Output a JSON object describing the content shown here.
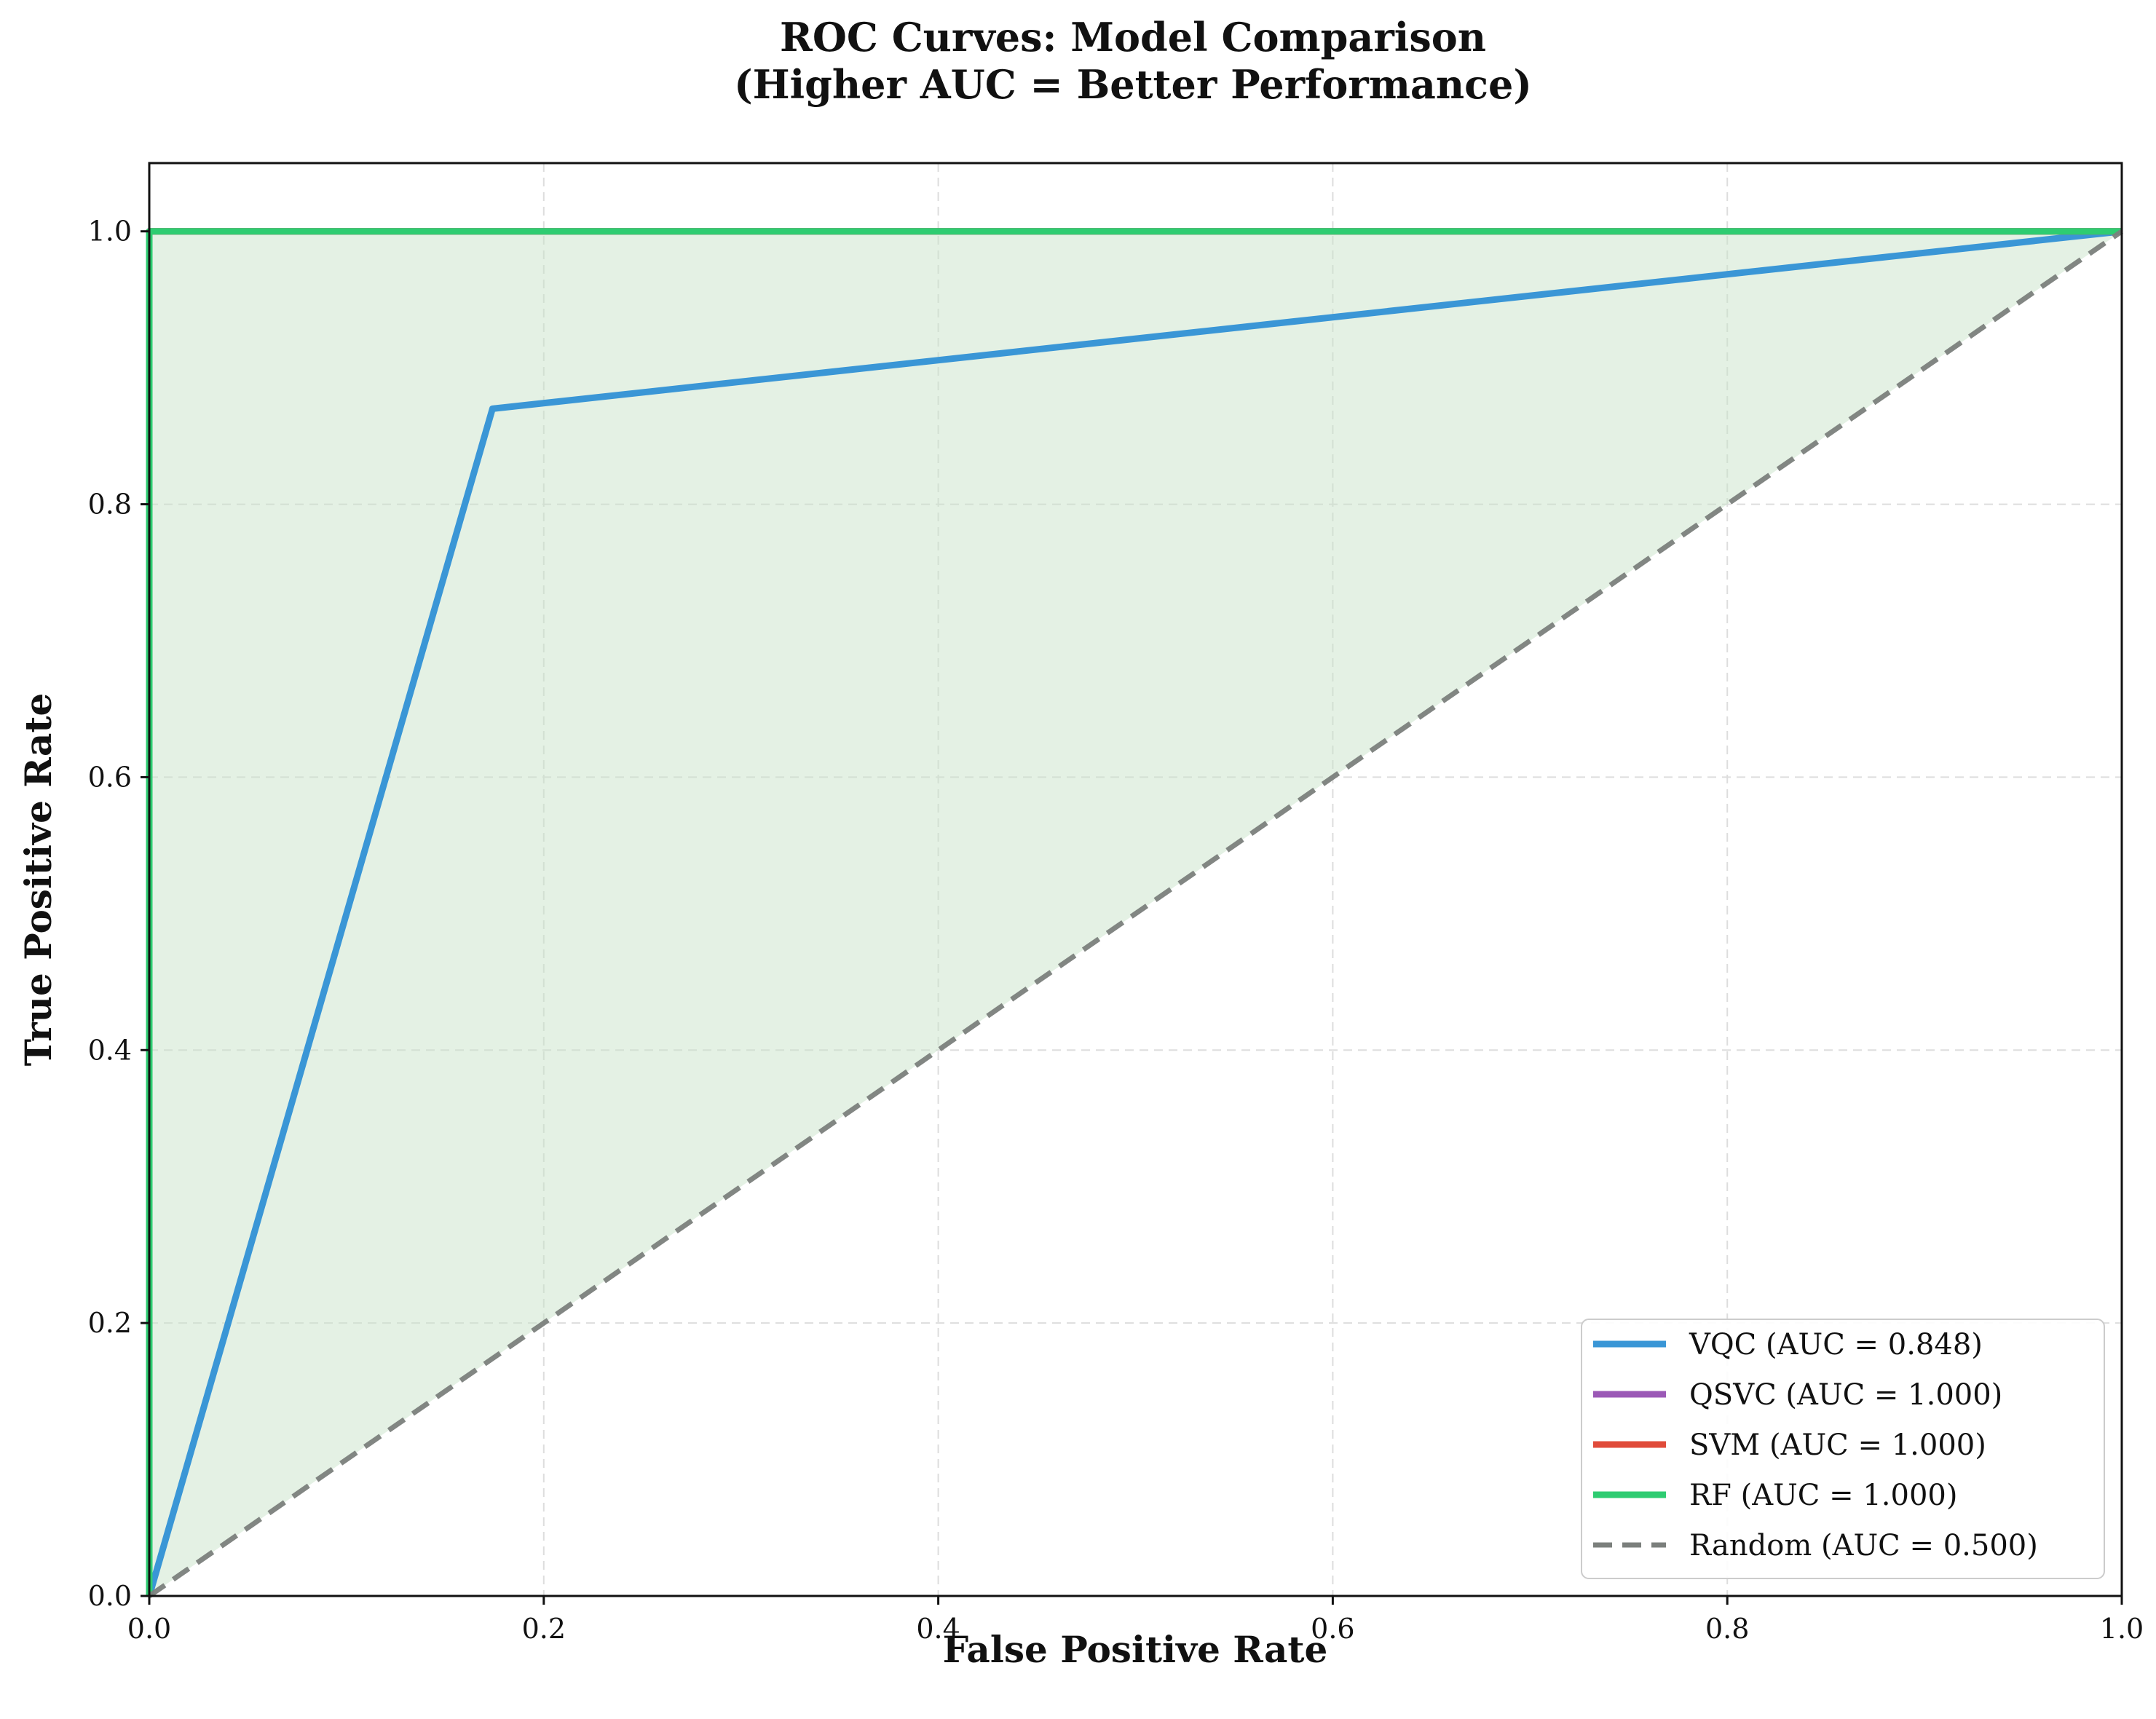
{
  "chart_data": {
    "type": "line",
    "title_lines": [
      "ROC Curves: Model Comparison",
      "(Higher AUC = Better Performance)"
    ],
    "xlabel": "False Positive Rate",
    "ylabel": "True Positive Rate",
    "xlim": [
      0.0,
      1.0
    ],
    "ylim": [
      0.0,
      1.05
    ],
    "xticks": [
      0.0,
      0.2,
      0.4,
      0.6,
      0.8,
      1.0
    ],
    "yticks": [
      0.0,
      0.2,
      0.4,
      0.6,
      0.8,
      1.0
    ],
    "xtick_labels": [
      "0.0",
      "0.2",
      "0.4",
      "0.6",
      "0.8",
      "1.0"
    ],
    "ytick_labels": [
      "0.0",
      "0.2",
      "0.4",
      "0.6",
      "0.8",
      "1.0"
    ],
    "grid": true,
    "legend_position": "bottom-right",
    "fill": {
      "x": [
        0.0,
        0.0,
        1.0
      ],
      "y": [
        0.0,
        1.0,
        1.0
      ],
      "color": "#c9e4c9"
    },
    "series": [
      {
        "name": "VQC (AUC = 0.848)",
        "color": "#3a96d6",
        "style": "solid",
        "x": [
          0.0,
          0.174,
          1.0
        ],
        "y": [
          0.0,
          0.87,
          1.0
        ]
      },
      {
        "name": "QSVC (AUC = 1.000)",
        "color": "#9b59b6",
        "style": "solid",
        "x": [
          0.0,
          0.0,
          1.0
        ],
        "y": [
          0.0,
          1.0,
          1.0
        ]
      },
      {
        "name": "SVM (AUC = 1.000)",
        "color": "#e04b3a",
        "style": "solid",
        "x": [
          0.0,
          0.0,
          1.0
        ],
        "y": [
          0.0,
          1.0,
          1.0
        ]
      },
      {
        "name": "RF (AUC = 1.000)",
        "color": "#2ecc71",
        "style": "solid",
        "x": [
          0.0,
          0.0,
          1.0
        ],
        "y": [
          0.0,
          1.0,
          1.0
        ]
      },
      {
        "name": "Random (AUC = 0.500)",
        "color": "#7b7f7c",
        "style": "dashed",
        "x": [
          0.0,
          1.0
        ],
        "y": [
          0.0,
          1.0
        ]
      }
    ]
  }
}
